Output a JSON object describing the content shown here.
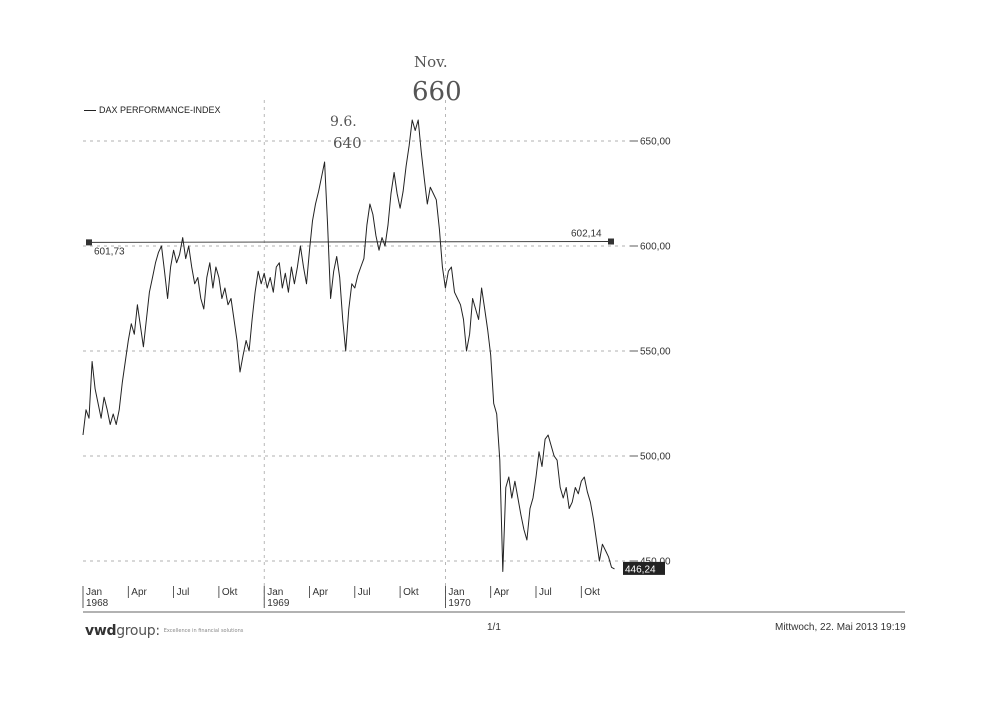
{
  "chart_data": {
    "type": "line",
    "legend": "DAX PERFORMANCE-INDEX",
    "legend_position": "top-left",
    "grid": true,
    "xlim": [
      "1968-01",
      "1970-12"
    ],
    "ylim": [
      440,
      660
    ],
    "y_ticks": [
      450,
      500,
      550,
      600,
      650
    ],
    "y_tick_labels": [
      "450,00",
      "500,00",
      "550,00",
      "600,00",
      "650,00"
    ],
    "x_ticks": [
      {
        "t": 0,
        "label": "Jan",
        "year": "1968"
      },
      {
        "t": 3,
        "label": "Apr",
        "year": ""
      },
      {
        "t": 6,
        "label": "Jul",
        "year": ""
      },
      {
        "t": 9,
        "label": "Okt",
        "year": ""
      },
      {
        "t": 12,
        "label": "Jan",
        "year": "1969"
      },
      {
        "t": 15,
        "label": "Apr",
        "year": ""
      },
      {
        "t": 18,
        "label": "Jul",
        "year": ""
      },
      {
        "t": 21,
        "label": "Okt",
        "year": ""
      },
      {
        "t": 24,
        "label": "Jan",
        "year": "1970"
      },
      {
        "t": 27,
        "label": "Apr",
        "year": ""
      },
      {
        "t": 30,
        "label": "Jul",
        "year": ""
      },
      {
        "t": 33,
        "label": "Okt",
        "year": ""
      }
    ],
    "series": [
      {
        "name": "DAX PERFORMANCE-INDEX",
        "points": [
          [
            0.0,
            510
          ],
          [
            0.2,
            522
          ],
          [
            0.4,
            518
          ],
          [
            0.6,
            545
          ],
          [
            0.8,
            532
          ],
          [
            1.0,
            525
          ],
          [
            1.2,
            518
          ],
          [
            1.4,
            528
          ],
          [
            1.6,
            522
          ],
          [
            1.8,
            515
          ],
          [
            2.0,
            520
          ],
          [
            2.2,
            515
          ],
          [
            2.4,
            522
          ],
          [
            2.6,
            535
          ],
          [
            2.8,
            545
          ],
          [
            3.0,
            555
          ],
          [
            3.2,
            563
          ],
          [
            3.4,
            558
          ],
          [
            3.6,
            572
          ],
          [
            3.8,
            562
          ],
          [
            4.0,
            552
          ],
          [
            4.2,
            565
          ],
          [
            4.4,
            578
          ],
          [
            4.6,
            585
          ],
          [
            4.8,
            592
          ],
          [
            5.0,
            597
          ],
          [
            5.2,
            600
          ],
          [
            5.4,
            588
          ],
          [
            5.6,
            575
          ],
          [
            5.8,
            590
          ],
          [
            6.0,
            598
          ],
          [
            6.2,
            592
          ],
          [
            6.4,
            596
          ],
          [
            6.6,
            604
          ],
          [
            6.8,
            594
          ],
          [
            7.0,
            600
          ],
          [
            7.2,
            590
          ],
          [
            7.4,
            582
          ],
          [
            7.6,
            585
          ],
          [
            7.8,
            575
          ],
          [
            8.0,
            570
          ],
          [
            8.2,
            585
          ],
          [
            8.4,
            592
          ],
          [
            8.6,
            580
          ],
          [
            8.8,
            590
          ],
          [
            9.0,
            585
          ],
          [
            9.2,
            575
          ],
          [
            9.4,
            580
          ],
          [
            9.6,
            572
          ],
          [
            9.8,
            575
          ],
          [
            10.0,
            565
          ],
          [
            10.2,
            555
          ],
          [
            10.4,
            540
          ],
          [
            10.6,
            548
          ],
          [
            10.8,
            555
          ],
          [
            11.0,
            550
          ],
          [
            11.2,
            565
          ],
          [
            11.4,
            578
          ],
          [
            11.6,
            588
          ],
          [
            11.8,
            582
          ],
          [
            12.0,
            587
          ],
          [
            12.2,
            580
          ],
          [
            12.4,
            585
          ],
          [
            12.6,
            578
          ],
          [
            12.8,
            590
          ],
          [
            13.0,
            592
          ],
          [
            13.2,
            580
          ],
          [
            13.4,
            587
          ],
          [
            13.6,
            578
          ],
          [
            13.8,
            590
          ],
          [
            14.0,
            582
          ],
          [
            14.2,
            590
          ],
          [
            14.4,
            600
          ],
          [
            14.6,
            590
          ],
          [
            14.8,
            582
          ],
          [
            15.0,
            598
          ],
          [
            15.2,
            612
          ],
          [
            15.4,
            620
          ],
          [
            15.6,
            626
          ],
          [
            15.8,
            633
          ],
          [
            16.0,
            640
          ],
          [
            16.2,
            610
          ],
          [
            16.4,
            575
          ],
          [
            16.6,
            588
          ],
          [
            16.8,
            595
          ],
          [
            17.0,
            585
          ],
          [
            17.2,
            565
          ],
          [
            17.4,
            550
          ],
          [
            17.6,
            570
          ],
          [
            17.8,
            582
          ],
          [
            18.0,
            580
          ],
          [
            18.2,
            586
          ],
          [
            18.4,
            590
          ],
          [
            18.6,
            594
          ],
          [
            18.8,
            610
          ],
          [
            19.0,
            620
          ],
          [
            19.2,
            615
          ],
          [
            19.4,
            605
          ],
          [
            19.6,
            598
          ],
          [
            19.8,
            604
          ],
          [
            20.0,
            600
          ],
          [
            20.2,
            610
          ],
          [
            20.4,
            625
          ],
          [
            20.6,
            635
          ],
          [
            20.8,
            625
          ],
          [
            21.0,
            618
          ],
          [
            21.2,
            626
          ],
          [
            21.4,
            638
          ],
          [
            21.6,
            648
          ],
          [
            21.8,
            660
          ],
          [
            22.0,
            655
          ],
          [
            22.2,
            660
          ],
          [
            22.4,
            645
          ],
          [
            22.6,
            632
          ],
          [
            22.8,
            620
          ],
          [
            23.0,
            628
          ],
          [
            23.2,
            625
          ],
          [
            23.4,
            622
          ],
          [
            23.6,
            608
          ],
          [
            23.8,
            590
          ],
          [
            24.0,
            580
          ],
          [
            24.2,
            588
          ],
          [
            24.4,
            590
          ],
          [
            24.6,
            578
          ],
          [
            24.8,
            575
          ],
          [
            25.0,
            572
          ],
          [
            25.2,
            565
          ],
          [
            25.4,
            550
          ],
          [
            25.6,
            558
          ],
          [
            25.8,
            575
          ],
          [
            26.0,
            570
          ],
          [
            26.2,
            565
          ],
          [
            26.4,
            580
          ],
          [
            26.6,
            570
          ],
          [
            26.8,
            560
          ],
          [
            27.0,
            548
          ],
          [
            27.2,
            525
          ],
          [
            27.4,
            520
          ],
          [
            27.6,
            498
          ],
          [
            27.8,
            445
          ],
          [
            28.0,
            485
          ],
          [
            28.2,
            490
          ],
          [
            28.4,
            480
          ],
          [
            28.6,
            488
          ],
          [
            28.8,
            480
          ],
          [
            29.0,
            472
          ],
          [
            29.2,
            465
          ],
          [
            29.4,
            460
          ],
          [
            29.6,
            475
          ],
          [
            29.8,
            480
          ],
          [
            30.0,
            490
          ],
          [
            30.2,
            502
          ],
          [
            30.4,
            495
          ],
          [
            30.6,
            508
          ],
          [
            30.8,
            510
          ],
          [
            31.0,
            505
          ],
          [
            31.2,
            500
          ],
          [
            31.4,
            498
          ],
          [
            31.6,
            485
          ],
          [
            31.8,
            480
          ],
          [
            32.0,
            485
          ],
          [
            32.2,
            475
          ],
          [
            32.4,
            478
          ],
          [
            32.6,
            485
          ],
          [
            32.8,
            482
          ],
          [
            33.0,
            488
          ],
          [
            33.2,
            490
          ],
          [
            33.4,
            483
          ],
          [
            33.6,
            478
          ],
          [
            33.8,
            470
          ],
          [
            34.0,
            460
          ],
          [
            34.2,
            450
          ],
          [
            34.4,
            458
          ],
          [
            34.6,
            455
          ],
          [
            34.8,
            452
          ],
          [
            35.0,
            447
          ],
          [
            35.2,
            446.24
          ]
        ]
      }
    ],
    "reference_line": {
      "left_label": "601,73",
      "right_label": "602,14",
      "left_value": 601.73,
      "right_value": 602.14
    },
    "last_value_label": "446,24",
    "last_value": 446.24,
    "annotations": [
      {
        "id": "jun",
        "text_top": "9.6.",
        "text_bottom": "640"
      },
      {
        "id": "nov",
        "text_top": "Nov.",
        "text_bottom": "660"
      }
    ]
  },
  "footer": {
    "brand_bold": "vwd",
    "brand_light": "group:",
    "tagline": "Excellence in financial solutions",
    "page": "1/1",
    "date": "Mittwoch, 22. Mai 2013 19:19"
  }
}
